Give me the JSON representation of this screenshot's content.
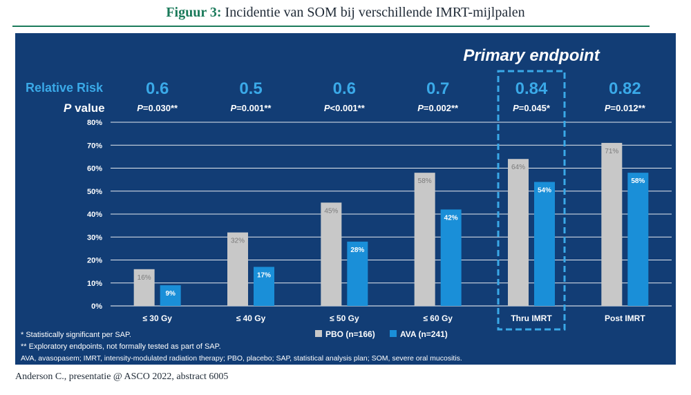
{
  "figure": {
    "label": "Figuur 3:",
    "title": "Incidentie van SOM bij verschillende IMRT-mijlpalen",
    "citation": "Anderson C., presentatie @ ASCO 2022, abstract 6005"
  },
  "colors": {
    "panel_bg": "#123d75",
    "pbo": "#c8c8c8",
    "ava": "#1a8fd8",
    "accent": "#3aa9e8",
    "title_green": "#1a7a5a"
  },
  "chart_data": {
    "type": "bar",
    "categories": [
      "≤ 30 Gy",
      "≤ 40 Gy",
      "≤ 50 Gy",
      "≤ 60 Gy",
      "Thru IMRT",
      "Post IMRT"
    ],
    "series": [
      {
        "name": "PBO (n=166)",
        "values": [
          16,
          32,
          45,
          58,
          64,
          71
        ],
        "labels": [
          "16%",
          "32%",
          "45%",
          "58%",
          "64%",
          "71%"
        ]
      },
      {
        "name": "AVA (n=241)",
        "values": [
          9,
          17,
          28,
          42,
          54,
          58
        ],
        "labels": [
          "9%",
          "17%",
          "28%",
          "42%",
          "54%",
          "58%"
        ]
      }
    ],
    "ylim": [
      0,
      80
    ],
    "yticks": [
      "0%",
      "10%",
      "20%",
      "30%",
      "40%",
      "50%",
      "60%",
      "70%",
      "80%"
    ],
    "grid": true,
    "legend_position": "bottom",
    "relative_risk_label": "Relative Risk",
    "p_value_label_italic": "P",
    "p_value_label_rest": " value",
    "relative_risk": [
      "0.6",
      "0.5",
      "0.6",
      "0.7",
      "0.84",
      "0.82"
    ],
    "p_values": [
      "=0.030**",
      "=0.001**",
      "<0.001**",
      "=0.002**",
      "=0.045*",
      "=0.012**"
    ],
    "p_prefix": "P",
    "highlight": {
      "category_index": 4,
      "label": "Primary endpoint"
    },
    "footnotes": [
      "* Statistically significant per SAP.",
      "** Exploratory endpoints, not formally tested as part of SAP.",
      "AVA, avasopasem; IMRT, intensity-modulated radiation therapy; PBO, placebo; SAP, statistical analysis plan; SOM, severe oral mucositis."
    ]
  }
}
